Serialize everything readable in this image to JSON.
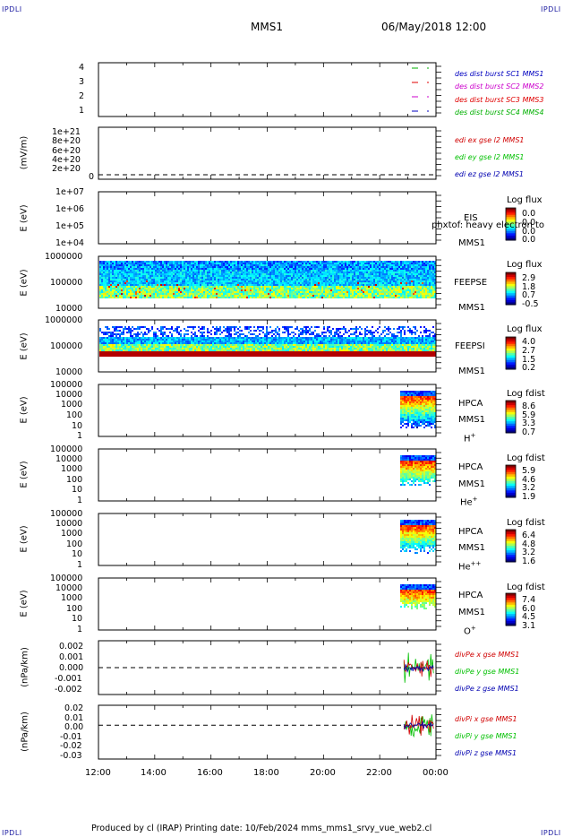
{
  "header": {
    "corner_tl": "IPDLI",
    "corner_tr": "IPDLI",
    "corner_bl": "IPDLI",
    "corner_br": "IPDLI",
    "spacecraft": "MMS1",
    "datetime": "06/May/2018 12:00"
  },
  "footer": {
    "text": "Produced by cl (IRAP)   Printing date: 10/Feb/2024   mms_mms1_srvy_vue_web2.cl"
  },
  "time_axis": {
    "labels": [
      "12:00",
      "14:00",
      "16:00",
      "18:00",
      "20:00",
      "22:00",
      "00:00"
    ]
  },
  "colors": {
    "sc1": "#00b000",
    "sc2": "#e00000",
    "sc3": "#cc00cc",
    "sc4": "#0000c0",
    "x": "#d00000",
    "y": "#00c000",
    "z": "#0000b0"
  },
  "panels": {
    "burst": {
      "yticks": [
        "4",
        "3",
        "2",
        "1"
      ],
      "legend": [
        "des dist burst SC1 MMS1",
        "des dist burst SC2 MMS2",
        "des dist burst SC3 MMS3",
        "des dist burst SC4 MMS4"
      ]
    },
    "edi": {
      "ylabel": "(mV/m)",
      "yticks": [
        "1e+21",
        "8e+20",
        "6e+20",
        "4e+20",
        "2e+20",
        "0"
      ],
      "legend": [
        "edi ex gse l2 MMS1",
        "edi ey gse l2 MMS1",
        "edi ez gse l2 MMS1"
      ]
    },
    "eis": {
      "ylabel": "E (eV)",
      "yticks": [
        "1e+07",
        "1e+06",
        "1e+05",
        "1e+04"
      ],
      "inst": "EIS",
      "overlay": "phxtof: heavy electron to",
      "sc": "MMS1",
      "cbtitle": "Log flux",
      "cbvals": [
        "0.0",
        "0.0",
        "0.0",
        "0.0"
      ]
    },
    "feepse": {
      "ylabel": "E (eV)",
      "yticks": [
        "1000000",
        "100000",
        "10000"
      ],
      "inst": "FEEPSE",
      "sc": "MMS1",
      "cbtitle": "Log flux",
      "cbvals": [
        "2.9",
        "1.8",
        "0.7",
        "-0.5"
      ]
    },
    "feepsi": {
      "ylabel": "E (eV)",
      "yticks": [
        "1000000",
        "100000",
        "10000"
      ],
      "inst": "FEEPSI",
      "sc": "MMS1",
      "cbtitle": "Log flux",
      "cbvals": [
        "4.0",
        "2.7",
        "1.5",
        "0.2"
      ]
    },
    "hpca_h": {
      "ylabel": "E (eV)",
      "yticks": [
        "100000",
        "10000",
        "1000",
        "100",
        "10",
        "1"
      ],
      "inst": "HPCA",
      "sc": "MMS1",
      "ion": "H",
      "charge": "+",
      "cbtitle": "Log fdist",
      "cbvals": [
        "8.6",
        "5.9",
        "3.3",
        "0.7"
      ]
    },
    "hpca_he": {
      "ylabel": "E (eV)",
      "yticks": [
        "100000",
        "10000",
        "1000",
        "100",
        "10",
        "1"
      ],
      "inst": "HPCA",
      "sc": "MMS1",
      "ion": "He",
      "charge": "+",
      "cbtitle": "Log fdist",
      "cbvals": [
        "5.9",
        "4.6",
        "3.2",
        "1.9"
      ]
    },
    "hpca_he2": {
      "ylabel": "E (eV)",
      "yticks": [
        "100000",
        "10000",
        "1000",
        "100",
        "10",
        "1"
      ],
      "inst": "HPCA",
      "sc": "MMS1",
      "ion": "He",
      "charge": "++",
      "cbtitle": "Log fdist",
      "cbvals": [
        "6.4",
        "4.8",
        "3.2",
        "1.6"
      ]
    },
    "hpca_o": {
      "ylabel": "E (eV)",
      "yticks": [
        "100000",
        "10000",
        "1000",
        "100",
        "10",
        "1"
      ],
      "inst": "HPCA",
      "sc": "MMS1",
      "ion": "O",
      "charge": "+",
      "cbtitle": "Log fdist",
      "cbvals": [
        "7.4",
        "6.0",
        "4.5",
        "3.1"
      ]
    },
    "divpe": {
      "ylabel": "(nPa/km)",
      "yticks": [
        "0.002",
        "0.001",
        "0.000",
        "-0.001",
        "-0.002"
      ],
      "legend": [
        "divPe x gse MMS1",
        "divPe y gse MMS1",
        "divPe z gse MMS1"
      ]
    },
    "divpi": {
      "ylabel": "(nPa/km)",
      "yticks": [
        "0.02",
        "0.01",
        "0.00",
        "-0.01",
        "-0.02",
        "-0.03"
      ],
      "legend": [
        "divPi x gse MMS1",
        "divPi y gse MMS1",
        "divPi z gse MMS1"
      ]
    }
  },
  "chart_data": {
    "type": "heatmap",
    "x_range": [
      "12:00",
      "00:00"
    ],
    "x_ticks": [
      "12:00",
      "14:00",
      "16:00",
      "18:00",
      "20:00",
      "22:00",
      "00:00"
    ],
    "grid": false
  }
}
